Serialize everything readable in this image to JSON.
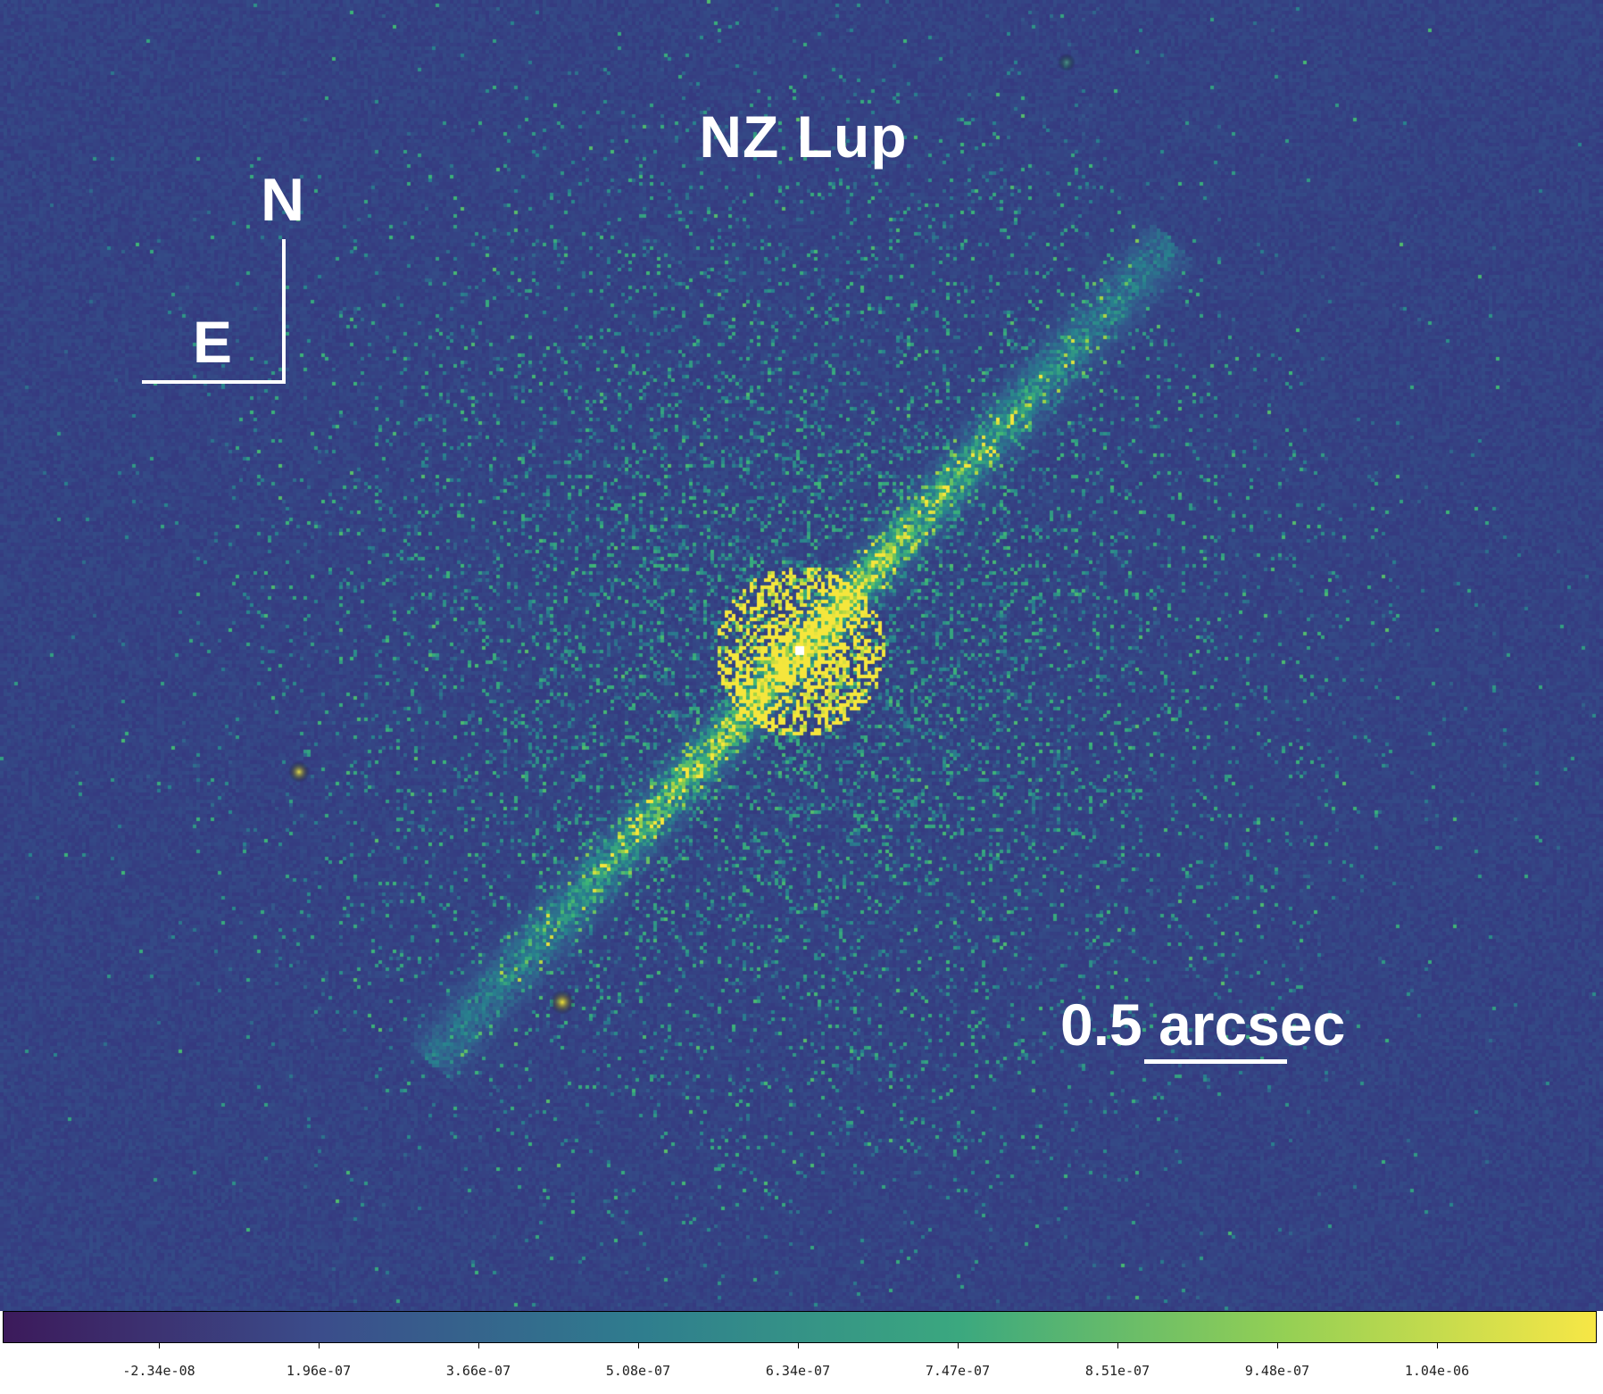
{
  "image": {
    "title": "NZ Lup",
    "compass": {
      "north": "N",
      "east": "E"
    },
    "scale_bar_label": "0.5 arcsec",
    "colors": {
      "background": "#35347f",
      "disk_high": "#f2e63c",
      "disk_mid": "#3fb58a",
      "label": "#ffffff"
    }
  },
  "colorbar": {
    "gradient_colors": [
      "#3c1a5b",
      "#3b4d8b",
      "#2f7d8e",
      "#3ba87f",
      "#92cf55",
      "#f7e746"
    ],
    "tick_labels": [
      "-2.34e-08",
      "1.96e-07",
      "3.66e-07",
      "5.08e-07",
      "6.34e-07",
      "7.47e-07",
      "8.51e-07",
      "9.48e-07",
      "1.04e-06"
    ]
  }
}
